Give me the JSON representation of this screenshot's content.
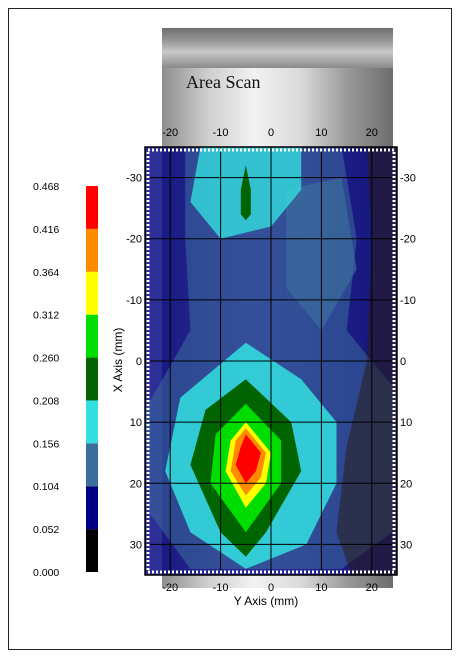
{
  "chart_data": {
    "type": "heatmap",
    "title": "Area Scan",
    "xlabel": "Y Axis (mm)",
    "ylabel": "X Axis (mm)",
    "xlim": [
      -25,
      25
    ],
    "ylim": [
      -35,
      35
    ],
    "x_ticks": [
      -20,
      -10,
      0,
      10,
      20
    ],
    "y_ticks": [
      -30,
      -20,
      -10,
      0,
      10,
      20,
      30
    ],
    "grid": true,
    "colorbar": {
      "levels": [
        0.0,
        0.052,
        0.104,
        0.156,
        0.208,
        0.26,
        0.312,
        0.364,
        0.416,
        0.468
      ],
      "labels": [
        "0.000",
        "0.052",
        "0.104",
        "0.156",
        "0.208",
        "0.260",
        "0.312",
        "0.364",
        "0.416",
        "0.468"
      ],
      "colors": [
        "#000000",
        "#000080",
        "#3c6e9c",
        "#33e0e0",
        "#006400",
        "#00dd00",
        "#ffff00",
        "#ff8c00",
        "#ff0000"
      ]
    },
    "peaks": [
      {
        "y_mm": -5,
        "x_mm": 15,
        "value": 0.45
      },
      {
        "y_mm": -5,
        "x_mm": -25,
        "value": 0.21
      }
    ]
  }
}
